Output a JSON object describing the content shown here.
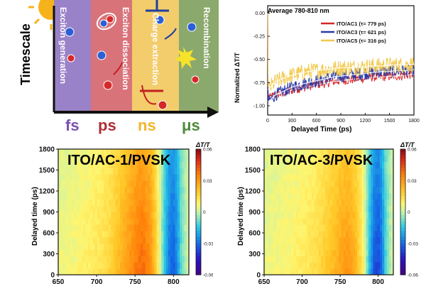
{
  "schematic": {
    "y_axis_label": "Timescale",
    "stages": [
      {
        "label": "Exciton generation",
        "color": "#9a82c8"
      },
      {
        "label": "Exciton dissociation",
        "color": "#d9737a"
      },
      {
        "label": "Charge extraction",
        "color": "#f3cc6c"
      },
      {
        "label": "Recombination",
        "color": "#8ba96c"
      }
    ],
    "scales": [
      {
        "label": "fs",
        "color": "#7b4fb0"
      },
      {
        "label": "ps",
        "color": "#b02c35"
      },
      {
        "label": "ns",
        "color": "#f0b52b"
      },
      {
        "label": "μs",
        "color": "#4d8b3a"
      }
    ]
  },
  "kinetics": {
    "title": "Average 780-810 nm",
    "xlabel": "Delayed Time (ps)",
    "ylabel": "Normalized ΔT/T",
    "x_ticks": [
      "0",
      "300",
      "600",
      "900",
      "1200",
      "1500",
      "1800"
    ],
    "y_ticks": [
      "0.00",
      "-0.25",
      "-0.50",
      "-0.75",
      "-1.00"
    ]
  },
  "maps": [
    {
      "title": "ITO/AC-1/PVSK",
      "ylabel": "Delayed time (ps)",
      "y_ticks": [
        "1800",
        "1500",
        "1200",
        "900",
        "600",
        "300",
        "0"
      ],
      "x_ticks": [
        "650",
        "700",
        "750",
        "800"
      ],
      "cb_title": "ΔT/T",
      "cb_ticks": [
        "0.06",
        "0.03",
        "0",
        "-0.03",
        "-0.06"
      ]
    },
    {
      "title": "ITO/AC-3/PVSK",
      "ylabel": "Delayed time (ps)",
      "y_ticks": [
        "1800",
        "1500",
        "1200",
        "900",
        "600",
        "300",
        "0"
      ],
      "x_ticks": [
        "650",
        "700",
        "750",
        "800"
      ],
      "cb_title": "ΔT/T",
      "cb_ticks": [
        "0.06",
        "0.03",
        "0",
        "-0.03",
        "-0.06"
      ]
    }
  ],
  "chart_data": [
    {
      "type": "line",
      "title": "Average 780-810 nm",
      "xlabel": "Delayed Time (ps)",
      "ylabel": "Normalized ΔT/T",
      "xlim": [
        0,
        1800
      ],
      "ylim": [
        -1.1,
        0.08
      ],
      "grid": false,
      "legend_position": "top-right",
      "series": [
        {
          "name": "ITO/AC1 (τ= 779 ps)",
          "color": "#d62828",
          "tau": 779,
          "noise": 0.05,
          "x": [
            0,
            5,
            20,
            50,
            100,
            200,
            300,
            400,
            500,
            600,
            700,
            800,
            900,
            1000,
            1100,
            1200,
            1300,
            1400,
            1500,
            1600,
            1700,
            1800
          ],
          "y": [
            0,
            -0.9,
            -0.92,
            -0.9,
            -0.88,
            -0.86,
            -0.83,
            -0.81,
            -0.79,
            -0.77,
            -0.76,
            -0.74,
            -0.73,
            -0.72,
            -0.71,
            -0.7,
            -0.69,
            -0.69,
            -0.68,
            -0.68,
            -0.67,
            -0.66
          ]
        },
        {
          "name": "ITO/AC3 (τ= 621 ps)",
          "color": "#2a3aa8",
          "tau": 621,
          "noise": 0.07,
          "x": [
            0,
            5,
            20,
            50,
            100,
            200,
            300,
            400,
            500,
            600,
            700,
            800,
            900,
            1000,
            1100,
            1200,
            1300,
            1400,
            1500,
            1600,
            1700,
            1800
          ],
          "y": [
            0,
            -0.95,
            -0.95,
            -0.92,
            -0.88,
            -0.84,
            -0.8,
            -0.77,
            -0.75,
            -0.73,
            -0.71,
            -0.69,
            -0.68,
            -0.67,
            -0.66,
            -0.65,
            -0.64,
            -0.63,
            -0.63,
            -0.62,
            -0.62,
            -0.61
          ]
        },
        {
          "name": "ITO/AC5 (τ= 316 ps)",
          "color": "#f2c94c",
          "tau": 316,
          "noise": 0.09,
          "x": [
            0,
            5,
            20,
            50,
            100,
            200,
            300,
            400,
            500,
            600,
            700,
            800,
            900,
            1000,
            1100,
            1200,
            1300,
            1400,
            1500,
            1600,
            1700,
            1800
          ],
          "y": [
            0,
            -0.8,
            -0.82,
            -0.78,
            -0.74,
            -0.7,
            -0.67,
            -0.65,
            -0.63,
            -0.62,
            -0.61,
            -0.6,
            -0.59,
            -0.59,
            -0.58,
            -0.58,
            -0.57,
            -0.57,
            -0.56,
            -0.56,
            -0.56,
            -0.55
          ]
        }
      ]
    },
    {
      "type": "heatmap",
      "title": "ITO/AC-1/PVSK",
      "xlabel": "",
      "ylabel": "Delayed time (ps)",
      "xlim": [
        650,
        820
      ],
      "ylim": [
        0,
        1800
      ],
      "zlim": [
        -0.06,
        0.06
      ],
      "colorbar_label": "ΔT/T",
      "wavelength": [
        650,
        670,
        690,
        710,
        720,
        730,
        740,
        750,
        760,
        770,
        778,
        785,
        790,
        795,
        800,
        805,
        810,
        820
      ],
      "signal": [
        0.005,
        0.007,
        0.01,
        0.014,
        0.018,
        0.024,
        0.03,
        0.036,
        0.04,
        0.033,
        0.018,
        -0.005,
        -0.02,
        -0.03,
        -0.033,
        -0.025,
        -0.01,
        0.004
      ],
      "late_decay_fraction": 0.3
    },
    {
      "type": "heatmap",
      "title": "ITO/AC-3/PVSK",
      "xlabel": "",
      "ylabel": "Delayed time (ps)",
      "xlim": [
        650,
        820
      ],
      "ylim": [
        0,
        1800
      ],
      "zlim": [
        -0.06,
        0.06
      ],
      "colorbar_label": "ΔT/T",
      "wavelength": [
        650,
        670,
        690,
        710,
        720,
        730,
        740,
        750,
        760,
        770,
        778,
        785,
        790,
        795,
        800,
        805,
        810,
        820
      ],
      "signal": [
        0.005,
        0.007,
        0.009,
        0.012,
        0.015,
        0.019,
        0.023,
        0.028,
        0.031,
        0.026,
        0.014,
        -0.005,
        -0.022,
        -0.035,
        -0.038,
        -0.03,
        -0.012,
        0.004
      ],
      "late_decay_fraction": 0.35
    }
  ]
}
